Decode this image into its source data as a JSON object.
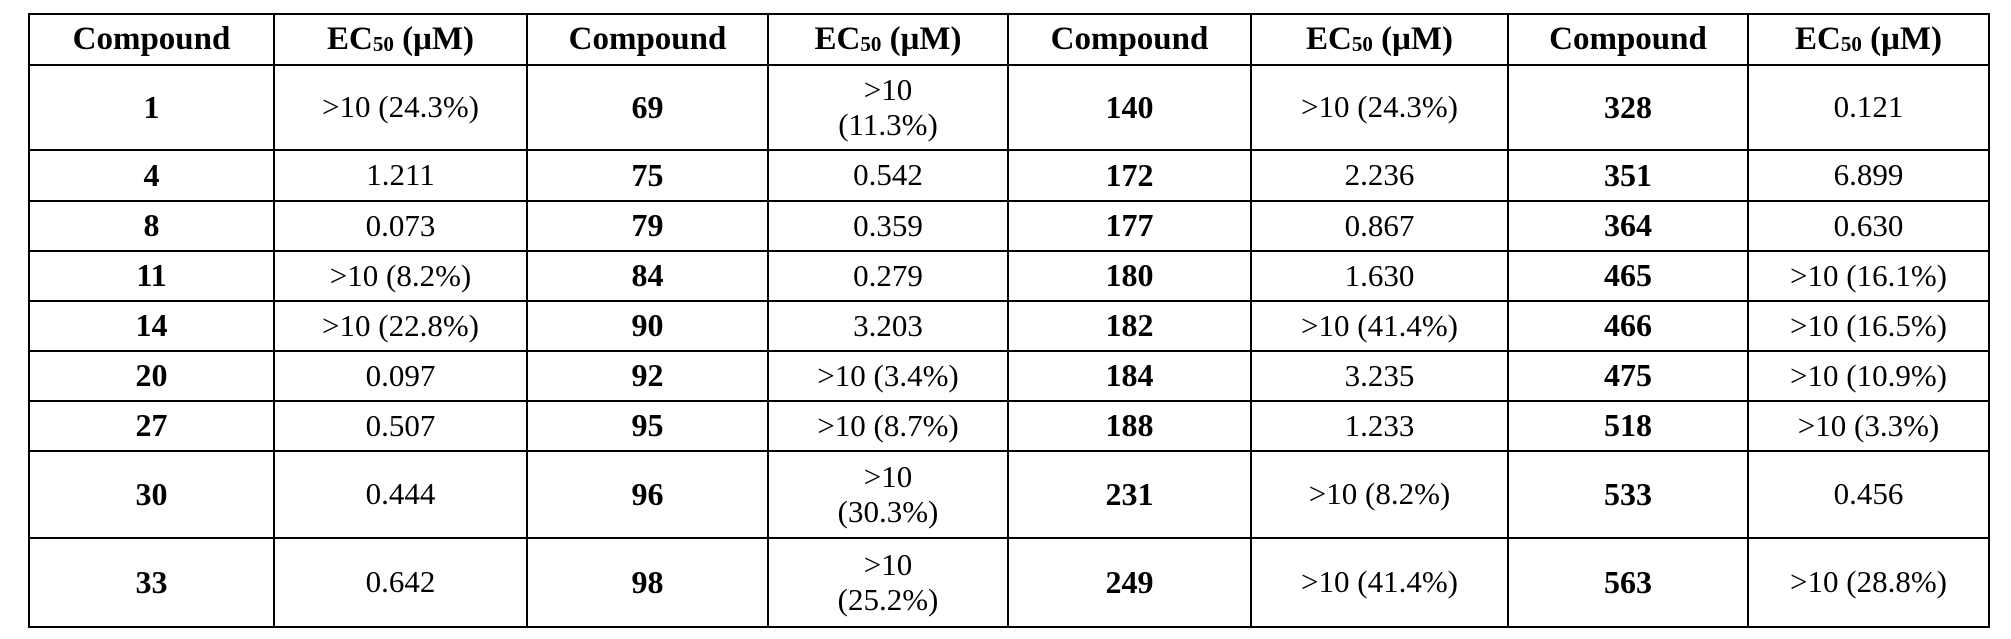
{
  "table": {
    "header": [
      "Compound",
      {
        "base": "EC",
        "sub": "50",
        "unit": " (μM)"
      },
      "Compound",
      {
        "base": "EC",
        "sub": "50",
        "unit": " (μM)"
      },
      "Compound",
      {
        "base": "EC",
        "sub": "50",
        "unit": " (μM)"
      },
      "Compound",
      {
        "base": "EC",
        "sub": "50",
        "unit": " (μM)"
      }
    ],
    "rows": [
      [
        "1",
        ">10 (24.3%)",
        "69",
        [
          ">10",
          "(11.3%)"
        ],
        "140",
        ">10 (24.3%)",
        "328",
        "0.121"
      ],
      [
        "4",
        "1.211",
        "75",
        "0.542",
        "172",
        "2.236",
        "351",
        "6.899"
      ],
      [
        "8",
        "0.073",
        "79",
        "0.359",
        "177",
        "0.867",
        "364",
        "0.630"
      ],
      [
        "11",
        ">10 (8.2%)",
        "84",
        "0.279",
        "180",
        "1.630",
        "465",
        ">10 (16.1%)"
      ],
      [
        "14",
        ">10 (22.8%)",
        "90",
        "3.203",
        "182",
        ">10 (41.4%)",
        "466",
        ">10 (16.5%)"
      ],
      [
        "20",
        "0.097",
        "92",
        ">10 (3.4%)",
        "184",
        "3.235",
        "475",
        ">10 (10.9%)"
      ],
      [
        "27",
        "0.507",
        "95",
        ">10 (8.7%)",
        "188",
        "1.233",
        "518",
        ">10 (3.3%)"
      ],
      [
        "30",
        "0.444",
        "96",
        [
          ">10",
          "(30.3%)"
        ],
        "231",
        ">10 (8.2%)",
        "533",
        "0.456"
      ],
      [
        "33",
        "0.642",
        "98",
        [
          ">10",
          "(25.2%)"
        ],
        "249",
        ">10 (41.4%)",
        "563",
        ">10 (28.8%)"
      ]
    ]
  }
}
